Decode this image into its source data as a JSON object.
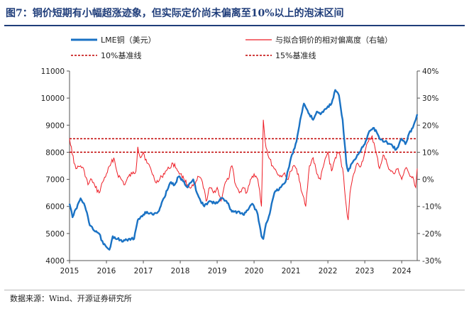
{
  "title": "图7：铜价短期有小幅超涨迹象，但实际定价尚未偏离至10%以上的泡沫区间",
  "source": "数据来源：Wind、开源证券研究所",
  "chart_data": {
    "type": "line",
    "x_ticks": [
      "2015",
      "2016",
      "2017",
      "2018",
      "2019",
      "2020",
      "2021",
      "2022",
      "2023",
      "2024"
    ],
    "x_range": [
      2015.0,
      2024.42
    ],
    "y_left": {
      "ticks": [
        "4000",
        "5000",
        "6000",
        "7000",
        "8000",
        "9000",
        "10000",
        "11000"
      ],
      "range": [
        4000,
        11000
      ]
    },
    "y_right": {
      "ticks": [
        "-30%",
        "-20%",
        "-10%",
        "0%",
        "10%",
        "20%",
        "30%",
        "40%"
      ],
      "range": [
        -30,
        40
      ]
    },
    "legend": {
      "lme": "LME铜（美元）",
      "deviation": "与拟合铜价的相对偏离度（右轴）",
      "ref10": "10%基准线",
      "ref15": "15%基准线"
    },
    "colors": {
      "lme": "#1a72c4",
      "deviation": "#ee1c25",
      "ref": "#c00000"
    },
    "reference_lines": [
      10,
      15
    ],
    "series": [
      {
        "name": "LME铜（美元）",
        "axis": "left",
        "x": [
          2015.0,
          2015.08,
          2015.17,
          2015.3,
          2015.42,
          2015.55,
          2015.67,
          2015.8,
          2015.92,
          2016.0,
          2016.08,
          2016.17,
          2016.3,
          2016.45,
          2016.6,
          2016.75,
          2016.85,
          2016.92,
          2017.0,
          2017.1,
          2017.25,
          2017.4,
          2017.55,
          2017.65,
          2017.75,
          2017.85,
          2017.95,
          2018.05,
          2018.2,
          2018.35,
          2018.45,
          2018.55,
          2018.65,
          2018.8,
          2018.95,
          2019.1,
          2019.25,
          2019.4,
          2019.55,
          2019.7,
          2019.85,
          2019.95,
          2020.0,
          2020.1,
          2020.2,
          2020.25,
          2020.3,
          2020.45,
          2020.55,
          2020.7,
          2020.85,
          2021.0,
          2021.15,
          2021.25,
          2021.35,
          2021.5,
          2021.6,
          2021.7,
          2021.8,
          2021.95,
          2022.1,
          2022.2,
          2022.3,
          2022.4,
          2022.5,
          2022.55,
          2022.7,
          2022.85,
          2023.0,
          2023.1,
          2023.25,
          2023.4,
          2023.55,
          2023.7,
          2023.85,
          2024.0,
          2024.1,
          2024.2,
          2024.3,
          2024.38,
          2024.42
        ],
        "values": [
          6100,
          5600,
          5900,
          6300,
          6000,
          5300,
          5100,
          5000,
          4600,
          4500,
          4400,
          4900,
          4800,
          4700,
          4800,
          4800,
          5500,
          5600,
          5700,
          5800,
          5700,
          5800,
          6300,
          6600,
          6900,
          6800,
          7100,
          7000,
          6700,
          7000,
          6500,
          6200,
          6000,
          6200,
          6100,
          6300,
          6200,
          5800,
          5800,
          5700,
          5900,
          6100,
          6000,
          5700,
          4900,
          4800,
          5200,
          5900,
          6500,
          6700,
          6900,
          7800,
          8400,
          9200,
          9800,
          9400,
          9200,
          9500,
          9400,
          9600,
          9800,
          10300,
          10100,
          9200,
          7600,
          7300,
          7700,
          8000,
          8300,
          8700,
          8900,
          8500,
          8400,
          8300,
          8100,
          8500,
          8300,
          8700,
          8900,
          9200,
          9400
        ]
      },
      {
        "name": "与拟合铜价的相对偏离度（右轴）",
        "axis": "right",
        "x": [
          2015.0,
          2015.05,
          2015.12,
          2015.2,
          2015.3,
          2015.4,
          2015.5,
          2015.6,
          2015.7,
          2015.8,
          2015.9,
          2016.0,
          2016.1,
          2016.2,
          2016.3,
          2016.4,
          2016.5,
          2016.6,
          2016.7,
          2016.8,
          2016.85,
          2016.92,
          2017.0,
          2017.1,
          2017.2,
          2017.3,
          2017.4,
          2017.5,
          2017.6,
          2017.7,
          2017.8,
          2017.9,
          2018.0,
          2018.1,
          2018.2,
          2018.3,
          2018.4,
          2018.5,
          2018.6,
          2018.7,
          2018.8,
          2018.9,
          2019.0,
          2019.1,
          2019.2,
          2019.3,
          2019.4,
          2019.5,
          2019.6,
          2019.7,
          2019.8,
          2019.9,
          2020.0,
          2020.1,
          2020.15,
          2020.2,
          2020.25,
          2020.3,
          2020.4,
          2020.5,
          2020.6,
          2020.7,
          2020.8,
          2020.9,
          2021.0,
          2021.1,
          2021.2,
          2021.3,
          2021.4,
          2021.5,
          2021.6,
          2021.7,
          2021.8,
          2021.9,
          2022.0,
          2022.1,
          2022.2,
          2022.3,
          2022.4,
          2022.5,
          2022.55,
          2022.6,
          2022.7,
          2022.8,
          2022.9,
          2023.0,
          2023.1,
          2023.2,
          2023.3,
          2023.4,
          2023.5,
          2023.6,
          2023.7,
          2023.8,
          2023.9,
          2024.0,
          2024.1,
          2024.2,
          2024.3,
          2024.38,
          2024.42
        ],
        "values": [
          15,
          12,
          6,
          4,
          5,
          3,
          -2,
          0,
          -3,
          -5,
          -1,
          2,
          5,
          8,
          2,
          0,
          -2,
          1,
          2,
          3,
          12,
          8,
          10,
          6,
          4,
          0,
          -1,
          1,
          3,
          4,
          6,
          4,
          2,
          0,
          -2,
          -3,
          -2,
          1,
          -1,
          -8,
          -3,
          -5,
          -3,
          -8,
          -2,
          0,
          5,
          -2,
          -5,
          -3,
          -5,
          0,
          2,
          0,
          -4,
          -10,
          22,
          14,
          8,
          5,
          3,
          1,
          2,
          0,
          3,
          5,
          2,
          -5,
          -10,
          5,
          8,
          2,
          0,
          6,
          10,
          3,
          8,
          10,
          4,
          -10,
          -15,
          -5,
          2,
          6,
          5,
          10,
          14,
          16,
          10,
          4,
          9,
          6,
          3,
          2,
          4,
          0,
          4,
          2,
          1,
          -3,
          4
        ]
      }
    ]
  }
}
